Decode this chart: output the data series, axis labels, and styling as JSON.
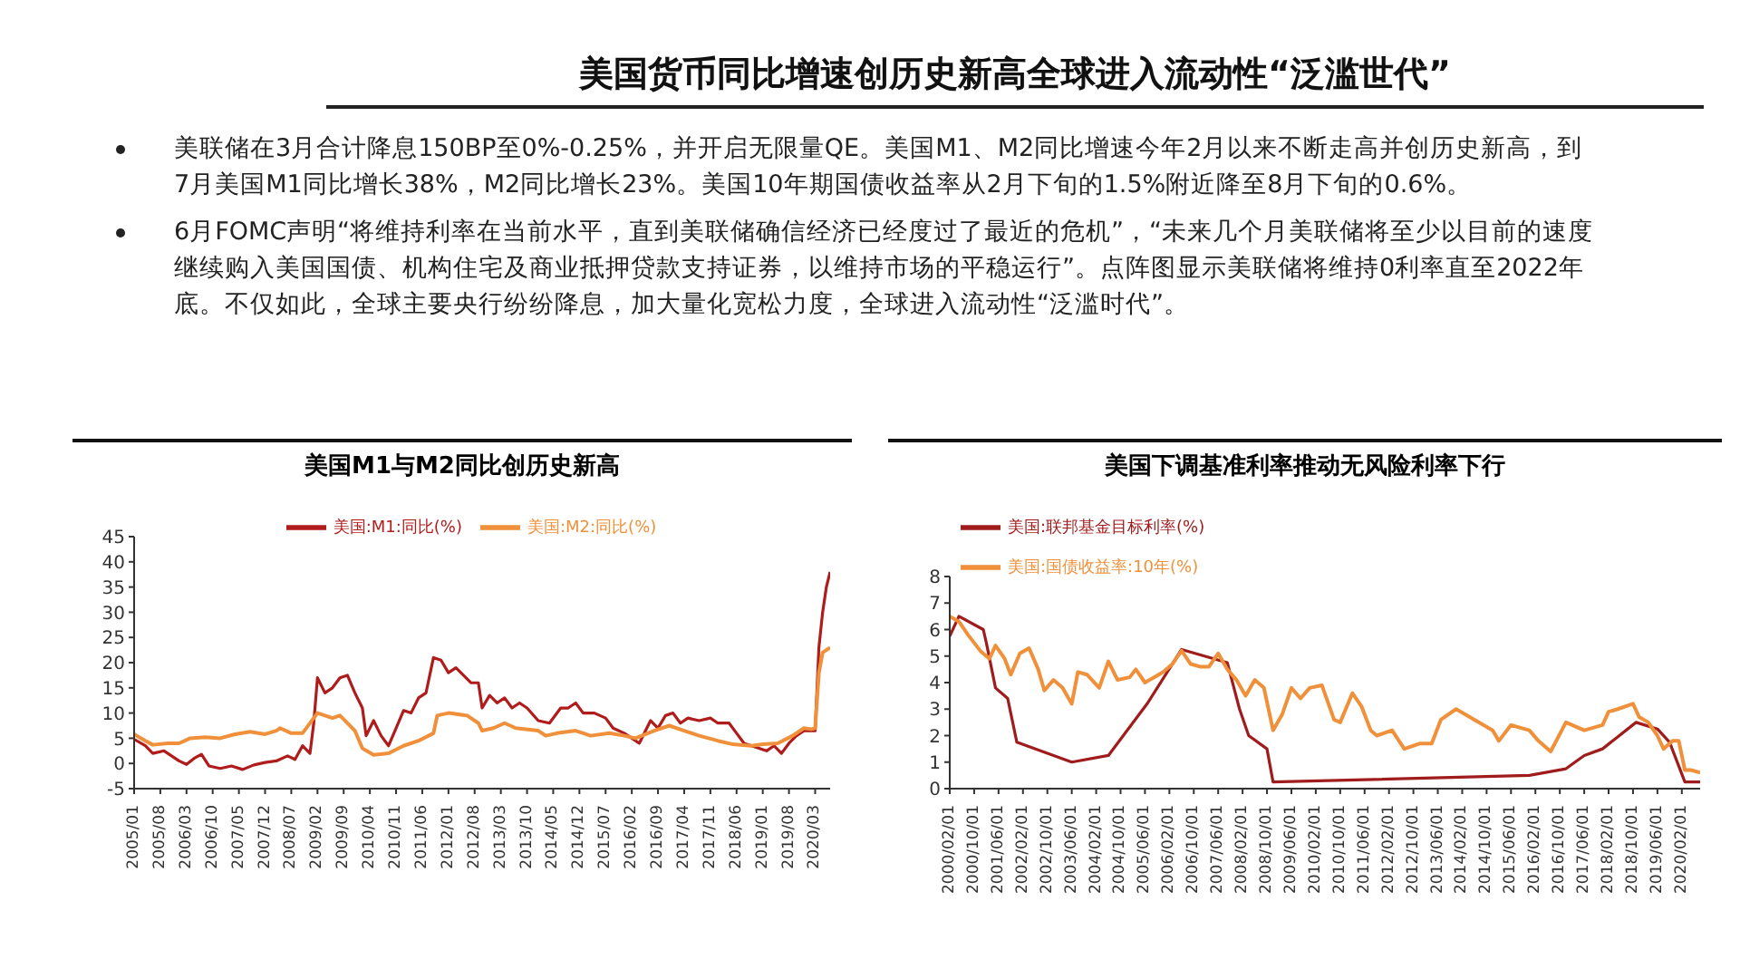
{
  "chart_data": [
    {
      "type": "other",
      "title": "美国货币同比增速创历史新高全球进入流动性“泛滥世代”",
      "annotations": [
        "美联储在3月合计降息150BP至0%-0.25%，并开启无限量QE。美国M1、M2同比增速今年2月以来不断走高并创历史新高，到7月美国M1同比增长38%，M2同比增长23%。美国10年期国债收益率从2月下旬的1.5%附近降至8月下旬的0.6%。",
        "6月FOMC声明“将维持利率在当前水平，直到美联储确信经济已经度过了最近的危机”，“未来几个月美联储将至少以目前的速度继续购入美国国债、机构住宅及商业抵押贷款支持证券，以维持市场的平稳运行”。点阵图显示美联储将维持0利率直至2022年底。不仅如此，全球主要央行纷纷降息，加大量化宽松力度，全球进入流动性“泛滥时代”。"
      ]
    },
    {
      "type": "line",
      "title": "美国M1与M2同比创历史新高",
      "legend": "top",
      "ylim": [
        -5,
        45
      ],
      "yticks": [
        -5,
        0,
        5,
        10,
        15,
        20,
        25,
        30,
        35,
        40,
        45
      ],
      "xlim": [
        "2005-01",
        "2020-07"
      ],
      "xticks": [
        {
          "value": "2005-01",
          "label": "2005/01"
        },
        {
          "value": "2005-08",
          "label": "2005/08"
        },
        {
          "value": "2006-03",
          "label": "2006/03"
        },
        {
          "value": "2006-10",
          "label": "2006/10"
        },
        {
          "value": "2007-05",
          "label": "2007/05"
        },
        {
          "value": "2007-12",
          "label": "2007/12"
        },
        {
          "value": "2008-07",
          "label": "2008/07"
        },
        {
          "value": "2009-02",
          "label": "2009/02"
        },
        {
          "value": "2009-09",
          "label": "2009/09"
        },
        {
          "value": "2010-04",
          "label": "2010/04"
        },
        {
          "value": "2010-11",
          "label": "2010/11"
        },
        {
          "value": "2011-06",
          "label": "2011/06"
        },
        {
          "value": "2012-01",
          "label": "2012/01"
        },
        {
          "value": "2012-08",
          "label": "2012/08"
        },
        {
          "value": "2013-03",
          "label": "2013/03"
        },
        {
          "value": "2013-10",
          "label": "2013/10"
        },
        {
          "value": "2014-05",
          "label": "2014/05"
        },
        {
          "value": "2014-12",
          "label": "2014/12"
        },
        {
          "value": "2015-07",
          "label": "2015/07"
        },
        {
          "value": "2016-02",
          "label": "2016/02"
        },
        {
          "value": "2016-09",
          "label": "2016/09"
        },
        {
          "value": "2017-04",
          "label": "2017/04"
        },
        {
          "value": "2017-11",
          "label": "2017/11"
        },
        {
          "value": "2018-06",
          "label": "2018/06"
        },
        {
          "value": "2019-01",
          "label": "2019/01"
        },
        {
          "value": "2019-08",
          "label": "2019/08"
        },
        {
          "value": "2020-03",
          "label": "2020/03"
        }
      ],
      "series": [
        {
          "name": "美国:M1:同比(%)",
          "color": "#b01c1c",
          "x": [
            "2005-01",
            "2005-04",
            "2005-06",
            "2005-09",
            "2006-01",
            "2006-03",
            "2006-05",
            "2006-07",
            "2006-09",
            "2006-12",
            "2007-03",
            "2007-06",
            "2007-09",
            "2007-12",
            "2008-03",
            "2008-06",
            "2008-08",
            "2008-10",
            "2008-12",
            "2009-01",
            "2009-02",
            "2009-04",
            "2009-06",
            "2009-08",
            "2009-10",
            "2009-12",
            "2010-02",
            "2010-03",
            "2010-05",
            "2010-07",
            "2010-09",
            "2010-11",
            "2011-01",
            "2011-03",
            "2011-05",
            "2011-07",
            "2011-09",
            "2011-11",
            "2012-01",
            "2012-03",
            "2012-05",
            "2012-07",
            "2012-09",
            "2012-10",
            "2012-12",
            "2013-02",
            "2013-04",
            "2013-06",
            "2013-08",
            "2013-10",
            "2014-01",
            "2014-04",
            "2014-07",
            "2014-09",
            "2014-11",
            "2015-01",
            "2015-04",
            "2015-07",
            "2015-09",
            "2015-12",
            "2016-02",
            "2016-04",
            "2016-07",
            "2016-09",
            "2016-11",
            "2017-01",
            "2017-03",
            "2017-05",
            "2017-08",
            "2017-11",
            "2018-01",
            "2018-04",
            "2018-06",
            "2018-08",
            "2018-10",
            "2018-12",
            "2019-02",
            "2019-04",
            "2019-06",
            "2019-08",
            "2019-10",
            "2019-12",
            "2020-02",
            "2020-03",
            "2020-04",
            "2020-05",
            "2020-06",
            "2020-07"
          ],
          "values": [
            4.8,
            3.5,
            2,
            2.5,
            0.5,
            -0.2,
            1,
            1.8,
            -0.5,
            -1,
            -0.5,
            -1.2,
            -0.3,
            0.2,
            0.5,
            1.5,
            0.8,
            3.5,
            2,
            8,
            17,
            14,
            15,
            17,
            17.5,
            14,
            11,
            5.5,
            8.5,
            5.5,
            3.5,
            7,
            10.5,
            10,
            13,
            14,
            21,
            20.5,
            18,
            19,
            17.5,
            16,
            16,
            11,
            13.5,
            12,
            13,
            11,
            12,
            11,
            8.5,
            8,
            11,
            11,
            12,
            10,
            10,
            9,
            7,
            6,
            5,
            4,
            8.5,
            7,
            9.5,
            10,
            8,
            9,
            8.5,
            9,
            8,
            8,
            6,
            4,
            3.5,
            3,
            2.5,
            3.5,
            2,
            4,
            5.5,
            6.5,
            6.5,
            6.5,
            23,
            30,
            35,
            38
          ]
        },
        {
          "name": "美国:M2:同比(%)",
          "color": "#f0903a",
          "x": [
            "2005-01",
            "2005-04",
            "2005-06",
            "2005-10",
            "2006-01",
            "2006-04",
            "2006-08",
            "2006-12",
            "2007-04",
            "2007-08",
            "2007-12",
            "2008-03",
            "2008-04",
            "2008-07",
            "2008-10",
            "2009-01",
            "2009-02",
            "2009-06",
            "2009-08",
            "2009-12",
            "2010-02",
            "2010-05",
            "2010-09",
            "2011-01",
            "2011-05",
            "2011-09",
            "2011-10",
            "2012-01",
            "2012-06",
            "2012-09",
            "2012-10",
            "2013-01",
            "2013-04",
            "2013-07",
            "2014-01",
            "2014-03",
            "2014-06",
            "2014-11",
            "2015-03",
            "2015-08",
            "2015-12",
            "2016-03",
            "2016-08",
            "2016-12",
            "2017-04",
            "2017-08",
            "2018-01",
            "2018-05",
            "2018-10",
            "2019-01",
            "2019-05",
            "2019-09",
            "2019-12",
            "2020-02",
            "2020-03",
            "2020-04",
            "2020-05",
            "2020-06",
            "2020-07"
          ],
          "values": [
            5.8,
            4.5,
            3.7,
            4,
            4,
            5,
            5.2,
            5,
            5.8,
            6.3,
            5.8,
            6.5,
            7,
            6,
            6,
            9,
            10,
            9,
            9.5,
            6.5,
            3,
            1.7,
            2,
            3.5,
            4.5,
            6,
            9.5,
            10,
            9.5,
            8,
            6.5,
            7,
            8,
            7,
            6.5,
            5.5,
            6,
            6.5,
            5.5,
            6,
            5.5,
            5,
            6.5,
            7.5,
            6.5,
            5.5,
            4.5,
            3.8,
            3.5,
            3.8,
            4,
            5.5,
            7,
            6.8,
            7,
            18,
            22,
            22.5,
            23
          ]
        }
      ]
    },
    {
      "type": "line",
      "title": "美国下调基准利率推动无风险利率下行",
      "legend": "top",
      "ylim": [
        0,
        8
      ],
      "yticks": [
        0,
        1,
        2,
        3,
        4,
        5,
        6,
        7,
        8
      ],
      "xlim": [
        "2000-02",
        "2020-08"
      ],
      "xticks": [
        {
          "value": "2000-02",
          "label": "2000/02/01"
        },
        {
          "value": "2000-10",
          "label": "2000/10/01"
        },
        {
          "value": "2001-06",
          "label": "2001/06/01"
        },
        {
          "value": "2002-02",
          "label": "2002/02/01"
        },
        {
          "value": "2002-10",
          "label": "2002/10/01"
        },
        {
          "value": "2003-06",
          "label": "2003/06/01"
        },
        {
          "value": "2004-02",
          "label": "2004/02/01"
        },
        {
          "value": "2004-10",
          "label": "2004/10/01"
        },
        {
          "value": "2005-06",
          "label": "2005/06/01"
        },
        {
          "value": "2006-02",
          "label": "2006/02/01"
        },
        {
          "value": "2006-10",
          "label": "2006/10/01"
        },
        {
          "value": "2007-06",
          "label": "2007/06/01"
        },
        {
          "value": "2008-02",
          "label": "2008/02/01"
        },
        {
          "value": "2008-10",
          "label": "2008/10/01"
        },
        {
          "value": "2009-06",
          "label": "2009/06/01"
        },
        {
          "value": "2010-02",
          "label": "2010/02/01"
        },
        {
          "value": "2010-10",
          "label": "2010/10/01"
        },
        {
          "value": "2011-06",
          "label": "2011/06/01"
        },
        {
          "value": "2012-02",
          "label": "2012/02/01"
        },
        {
          "value": "2012-10",
          "label": "2012/10/01"
        },
        {
          "value": "2013-06",
          "label": "2013/06/01"
        },
        {
          "value": "2014-02",
          "label": "2014/02/01"
        },
        {
          "value": "2014-10",
          "label": "2014/10/01"
        },
        {
          "value": "2015-06",
          "label": "2015/06/01"
        },
        {
          "value": "2016-02",
          "label": "2016/02/01"
        },
        {
          "value": "2016-10",
          "label": "2016/10/01"
        },
        {
          "value": "2017-06",
          "label": "2017/06/01"
        },
        {
          "value": "2018-02",
          "label": "2018/02/01"
        },
        {
          "value": "2018-10",
          "label": "2018/10/01"
        },
        {
          "value": "2019-06",
          "label": "2019/06/01"
        },
        {
          "value": "2020-02",
          "label": "2020/02/01"
        }
      ],
      "series": [
        {
          "name": "美国:联邦基金目标利率(%)",
          "color": "#a01c1c",
          "x": [
            "2000-02",
            "2000-05",
            "2001-01",
            "2001-02",
            "2001-05",
            "2001-09",
            "2001-12",
            "2003-06",
            "2004-06",
            "2005-07",
            "2006-06",
            "2007-09",
            "2008-01",
            "2008-04",
            "2008-10",
            "2008-12",
            "2015-12",
            "2016-12",
            "2017-06",
            "2017-12",
            "2018-11",
            "2019-06",
            "2019-10",
            "2020-03",
            "2020-08"
          ],
          "values": [
            5.75,
            6.5,
            6,
            5.5,
            3.8,
            3.4,
            1.75,
            1,
            1.25,
            3.25,
            5.25,
            4.75,
            3,
            2,
            1.5,
            0.25,
            0.5,
            0.75,
            1.25,
            1.5,
            2.5,
            2.25,
            1.75,
            0.25,
            0.25
          ]
        },
        {
          "name": "美国:国债收益率:10年(%)",
          "color": "#f0903a",
          "x": [
            "2000-02",
            "2000-05",
            "2000-08",
            "2000-12",
            "2001-03",
            "2001-05",
            "2001-08",
            "2001-10",
            "2002-01",
            "2002-04",
            "2002-07",
            "2002-09",
            "2002-12",
            "2003-03",
            "2003-06",
            "2003-08",
            "2003-11",
            "2004-03",
            "2004-06",
            "2004-09",
            "2005-01",
            "2005-03",
            "2005-06",
            "2005-09",
            "2005-12",
            "2006-03",
            "2006-06",
            "2006-09",
            "2006-12",
            "2007-03",
            "2007-06",
            "2007-09",
            "2007-12",
            "2008-03",
            "2008-06",
            "2008-09",
            "2008-12",
            "2009-03",
            "2009-06",
            "2009-09",
            "2009-12",
            "2010-04",
            "2010-08",
            "2010-10",
            "2011-02",
            "2011-05",
            "2011-08",
            "2011-10",
            "2012-03",
            "2012-07",
            "2012-12",
            "2013-04",
            "2013-07",
            "2013-12",
            "2014-06",
            "2014-12",
            "2015-02",
            "2015-06",
            "2015-12",
            "2016-03",
            "2016-07",
            "2016-12",
            "2017-06",
            "2017-12",
            "2018-02",
            "2018-05",
            "2018-10",
            "2018-12",
            "2019-03",
            "2019-06",
            "2019-08",
            "2019-11",
            "2020-01",
            "2020-03",
            "2020-05",
            "2020-08"
          ],
          "values": [
            6.5,
            6.3,
            5.8,
            5.2,
            4.9,
            5.4,
            4.9,
            4.3,
            5.1,
            5.3,
            4.5,
            3.7,
            4.1,
            3.8,
            3.2,
            4.4,
            4.3,
            3.8,
            4.8,
            4.1,
            4.2,
            4.5,
            4,
            4.2,
            4.4,
            4.7,
            5.2,
            4.7,
            4.6,
            4.6,
            5.1,
            4.5,
            4.1,
            3.5,
            4.1,
            3.8,
            2.2,
            2.8,
            3.8,
            3.4,
            3.8,
            3.9,
            2.6,
            2.5,
            3.6,
            3.1,
            2.2,
            2,
            2.2,
            1.5,
            1.7,
            1.7,
            2.6,
            3,
            2.6,
            2.2,
            1.8,
            2.4,
            2.2,
            1.8,
            1.4,
            2.5,
            2.2,
            2.4,
            2.9,
            3,
            3.2,
            2.7,
            2.5,
            2,
            1.5,
            1.8,
            1.8,
            0.7,
            0.7,
            0.6
          ]
        }
      ]
    }
  ]
}
